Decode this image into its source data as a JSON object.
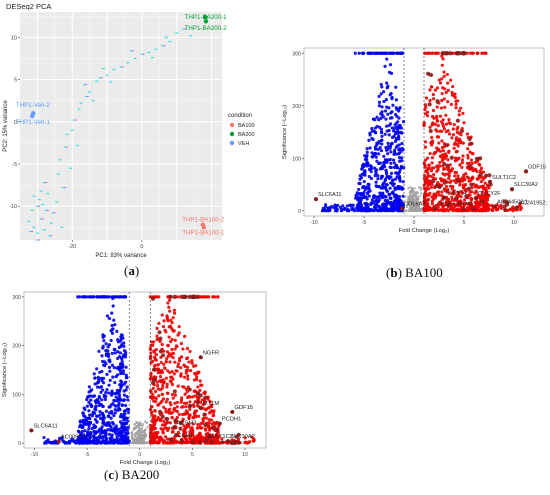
{
  "captions": {
    "a": {
      "paren_open": "(",
      "letter": "a",
      "paren_close": ")",
      "text": ""
    },
    "b": {
      "paren_open": "(",
      "letter": "b",
      "paren_close": ")",
      "text": " BA100"
    },
    "c": {
      "paren_open": "(",
      "letter": "c",
      "paren_close": ")",
      "text": " BA200"
    }
  },
  "chart_data": [
    {
      "id": "a",
      "type": "scatter",
      "title": "DESeq2 PCA",
      "xlabel": "PC1: 83% variance",
      "ylabel": "PC2: 15% variance",
      "x_ticks": [
        -20,
        0
      ],
      "y_ticks": [
        10,
        5,
        0,
        -5,
        -10
      ],
      "xlim": [
        -35,
        23
      ],
      "ylim": [
        -14,
        13
      ],
      "grid": true,
      "legend": {
        "title": "condition",
        "position": "right",
        "entries": [
          "BA100",
          "BA200",
          "VEH"
        ]
      },
      "colors": {
        "BA100": "#f8766d",
        "BA200": "#00a030",
        "VEH": "#619cff",
        "artifact": "#33dfdf",
        "artifact2": "#ff44ee"
      },
      "series": [
        {
          "name": "BA100",
          "points": [
            [
              17.5,
              -12.2
            ],
            [
              17.8,
              -12.5
            ]
          ]
        },
        {
          "name": "BA200",
          "points": [
            [
              18.2,
              12.4
            ],
            [
              18.4,
              11.9
            ]
          ]
        },
        {
          "name": "VEH",
          "points": [
            [
              -31.2,
              1.0
            ],
            [
              -31.5,
              0.7
            ]
          ]
        }
      ],
      "artifact_points": [
        [
          -32,
          -13
        ],
        [
          -31,
          -12.5
        ],
        [
          -30,
          -13.2
        ],
        [
          -29,
          -11.5
        ],
        [
          -28,
          -12.8
        ],
        [
          -31.5,
          -10.5
        ],
        [
          -30,
          -10
        ],
        [
          -29.5,
          -9.2
        ],
        [
          -28.5,
          -9.8
        ],
        [
          -27.5,
          -10.5
        ],
        [
          -31,
          -8.8
        ],
        [
          -29,
          -8.2
        ],
        [
          -28,
          -7.2
        ],
        [
          -27,
          -8.5
        ],
        [
          -26,
          -12
        ],
        [
          -25.5,
          -10.8
        ],
        [
          -24,
          -6.2
        ],
        [
          -23.5,
          -4.5
        ],
        [
          -22,
          -3.0
        ],
        [
          -21.5,
          -1.5
        ],
        [
          -20,
          -1.0
        ],
        [
          -19.5,
          0.2
        ],
        [
          -18,
          1.5
        ],
        [
          -17.5,
          2.2
        ],
        [
          -16,
          3.0
        ],
        [
          -15,
          3.5
        ],
        [
          -13,
          4.8
        ],
        [
          -12,
          5.2
        ],
        [
          -10,
          5.5
        ],
        [
          -8,
          6.2
        ],
        [
          -6,
          6.5
        ],
        [
          -4,
          7.0
        ],
        [
          -2,
          7.5
        ],
        [
          0,
          8.0
        ],
        [
          2,
          8.2
        ],
        [
          4,
          8.6
        ],
        [
          6,
          9.0
        ],
        [
          8,
          9.5
        ],
        [
          10,
          10.5
        ],
        [
          -30,
          -14
        ],
        [
          -32.5,
          -11.8
        ],
        [
          -24.5,
          -9.5
        ],
        [
          -22.5,
          -7.8
        ],
        [
          -20.5,
          -5.5
        ],
        [
          -23,
          -12.5
        ],
        [
          -26.5,
          -13.5
        ],
        [
          -18.5,
          -2.8
        ],
        [
          -14,
          2.5
        ],
        [
          -16.5,
          4.4
        ],
        [
          -11,
          6.3
        ],
        [
          -9,
          4.7
        ],
        [
          -3,
          8.4
        ],
        [
          3,
          7.6
        ],
        [
          7,
          10.0
        ],
        [
          12,
          11.0
        ],
        [
          14,
          10.2
        ]
      ],
      "labels": [
        {
          "text": "THP1-BA200-1",
          "x": 18.3,
          "y": 12.4,
          "color": "#00a030"
        },
        {
          "text": "THP1-BA200-2",
          "x": 18.3,
          "y": 11.1,
          "color": "#00a030"
        },
        {
          "text": "THP1-Veh-2",
          "x": -31.3,
          "y": 2.0,
          "color": "#619cff"
        },
        {
          "text": "THP1-Veh-1",
          "x": -31.3,
          "y": 0.0,
          "color": "#619cff"
        },
        {
          "text": "THP1-BA100-2",
          "x": 17.6,
          "y": -11.6,
          "color": "#f8766d"
        },
        {
          "text": "THP1-BA100-1",
          "x": 17.6,
          "y": -13.1,
          "color": "#f8766d"
        }
      ]
    },
    {
      "id": "b",
      "type": "scatter",
      "xlabel": "Fold Change (Log₂)",
      "ylabel": "Significance (−Log₁₀)",
      "x_ticks": [
        -10,
        -5,
        0,
        5,
        10
      ],
      "y_ticks": [
        0,
        100,
        200,
        300
      ],
      "xlim": [
        -11,
        13
      ],
      "ylim": [
        -10,
        310
      ],
      "threshold_x": [
        -1,
        1
      ],
      "colors": {
        "down": "#0000ee",
        "up": "#ee0000",
        "ns": "#a0a0a0",
        "top": "#8b1a1a"
      },
      "labels": [
        {
          "text": "GDF15",
          "x": 11.2,
          "y": 75
        },
        {
          "text": "SULT1C2",
          "x": 7.6,
          "y": 55
        },
        {
          "text": "SLC30A2",
          "x": 9.8,
          "y": 41
        },
        {
          "text": "SLC6A11",
          "x": -9.8,
          "y": 22
        },
        {
          "text": "GUCY2F",
          "x": 6.2,
          "y": 24
        },
        {
          "text": "AC244502.1",
          "x": 8.1,
          "y": 8
        },
        {
          "text": "AC241952.1",
          "x": 10.3,
          "y": 6
        },
        {
          "text": "COL6A3",
          "x": -1.2,
          "y": 4
        },
        {
          "text": "CKLF-CMTM1",
          "x": 2.1,
          "y": 4
        },
        {
          "text": "P2RY14",
          "x": 3.0,
          "y": 25
        }
      ]
    },
    {
      "id": "c",
      "type": "scatter",
      "xlabel": "Fold Change (Log₂)",
      "ylabel": "Significance (−Log₁₀)",
      "x_ticks": [
        -10,
        -5,
        0,
        5,
        10
      ],
      "y_ticks": [
        0,
        100,
        200,
        300
      ],
      "xlim": [
        -11,
        12
      ],
      "ylim": [
        -10,
        310
      ],
      "threshold_x": [
        -1,
        1
      ],
      "colors": {
        "down": "#0000ee",
        "up": "#ee0000",
        "ns": "#a0a0a0",
        "top": "#8b1a1a"
      },
      "labels": [
        {
          "text": "NGFR",
          "x": 5.8,
          "y": 176
        },
        {
          "text": "GDF15",
          "x": 8.8,
          "y": 64
        },
        {
          "text": "MT1M",
          "x": 5.8,
          "y": 72
        },
        {
          "text": "PCDH1",
          "x": 7.6,
          "y": 40
        },
        {
          "text": "SLC6A11",
          "x": -10.3,
          "y": 26
        },
        {
          "text": "SLC30A2",
          "x": 8.4,
          "y": 4
        },
        {
          "text": "SULT1C2",
          "x": 6.3,
          "y": 4
        },
        {
          "text": "ACSM3",
          "x": 3.3,
          "y": 32
        },
        {
          "text": "ACSM1",
          "x": 3.0,
          "y": 6
        },
        {
          "text": "AC005071.1",
          "x": -7.7,
          "y": 3
        }
      ]
    }
  ]
}
